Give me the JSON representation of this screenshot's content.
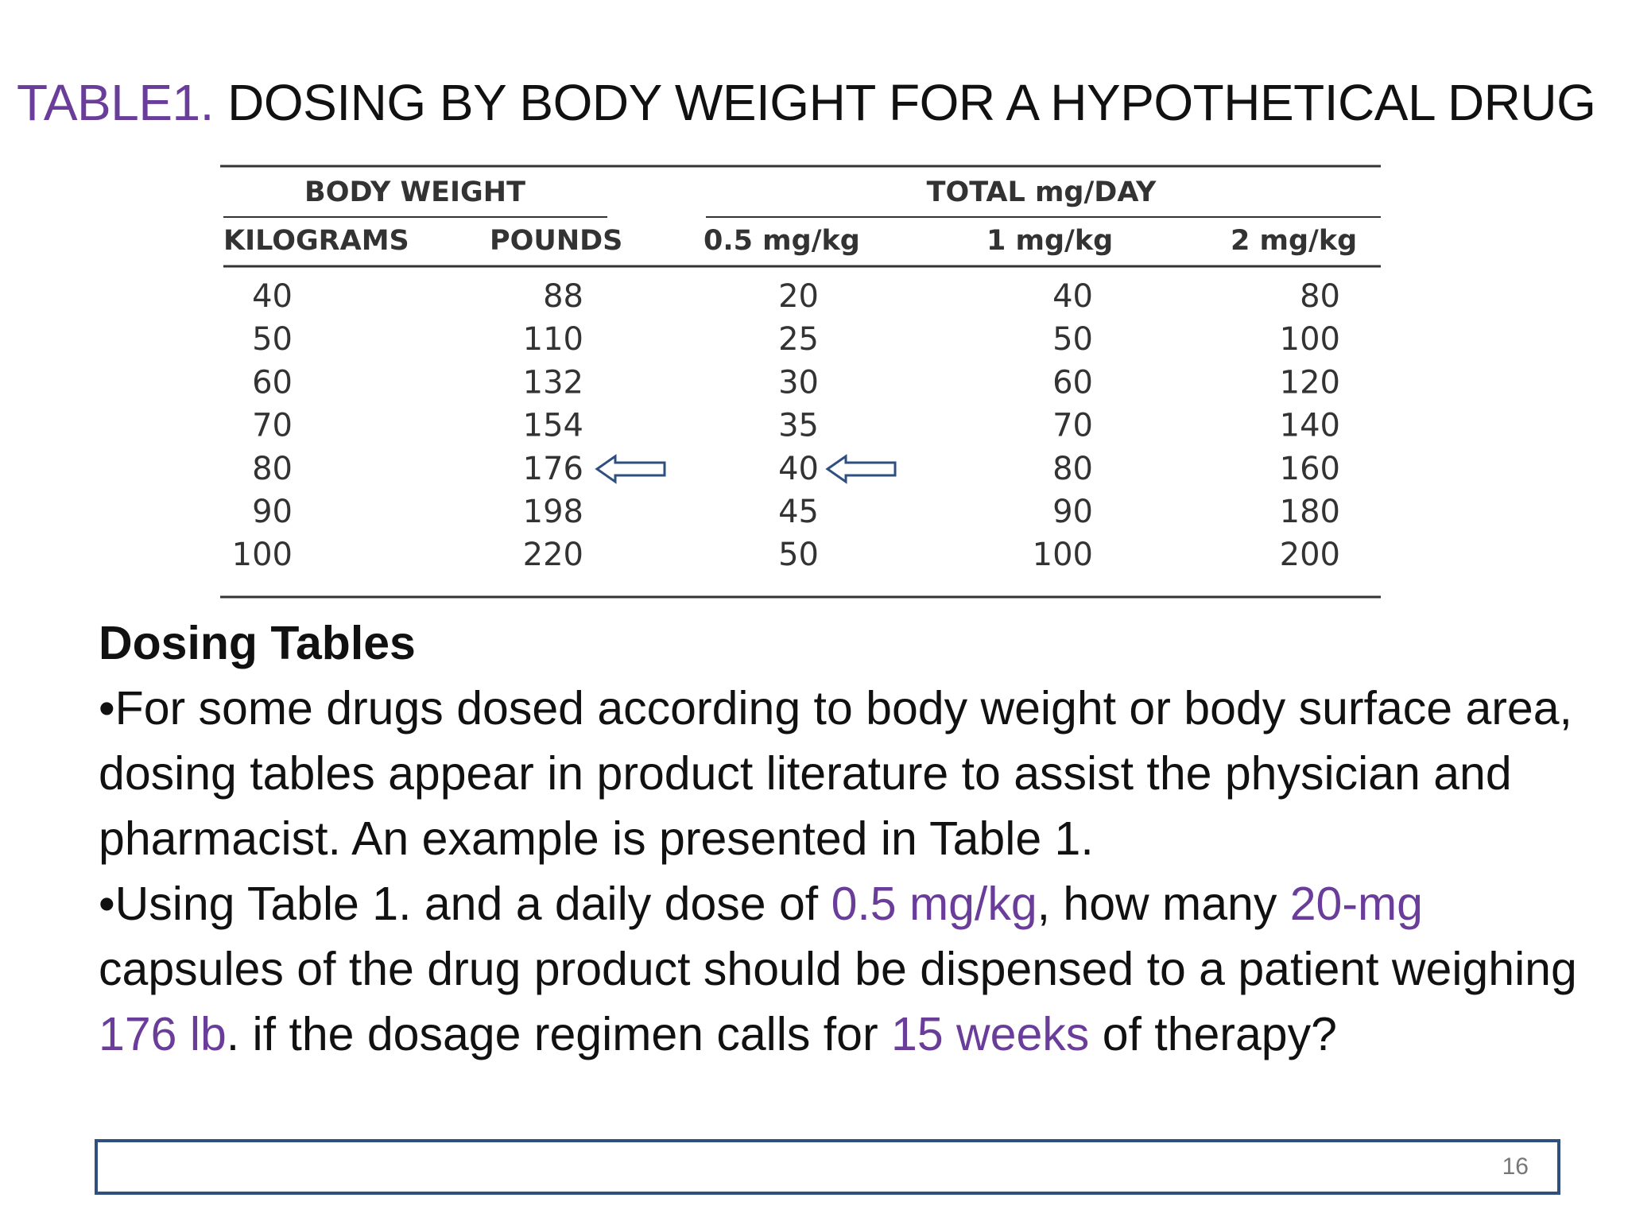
{
  "title": {
    "tag": "TABLE1.",
    "text": " DOSING BY BODY WEIGHT FOR A HYPOTHETICAL DRUG"
  },
  "table": {
    "group_headers": [
      "BODY WEIGHT",
      "TOTAL mg/DAY"
    ],
    "headers": [
      "KILOGRAMS",
      "POUNDS",
      "0.5 mg/kg",
      "1 mg/kg",
      "2 mg/kg"
    ],
    "rows": [
      [
        40,
        88,
        20,
        40,
        80
      ],
      [
        50,
        110,
        25,
        50,
        100
      ],
      [
        60,
        132,
        30,
        60,
        120
      ],
      [
        70,
        154,
        35,
        70,
        140
      ],
      [
        80,
        176,
        40,
        80,
        160
      ],
      [
        90,
        198,
        45,
        90,
        180
      ],
      [
        100,
        220,
        50,
        100,
        200
      ]
    ]
  },
  "body": {
    "heading": "Dosing Tables",
    "paragraph1": "•For some drugs dosed according to body weight or body surface area, dosing tables appear in product literature to assist the physician and pharmacist. An example is presented in Table 1.",
    "paragraph2": [
      "•Using Table 1. and a daily dose of ",
      "0.5 mg/kg",
      ", how many ",
      "20-mg",
      " capsules of the drug product should be dispensed to a patient weighing ",
      "176 lb",
      ". if the dosage regimen calls for ",
      "15 weeks",
      " of therapy?"
    ]
  },
  "footer": {
    "page_number": "16"
  }
}
